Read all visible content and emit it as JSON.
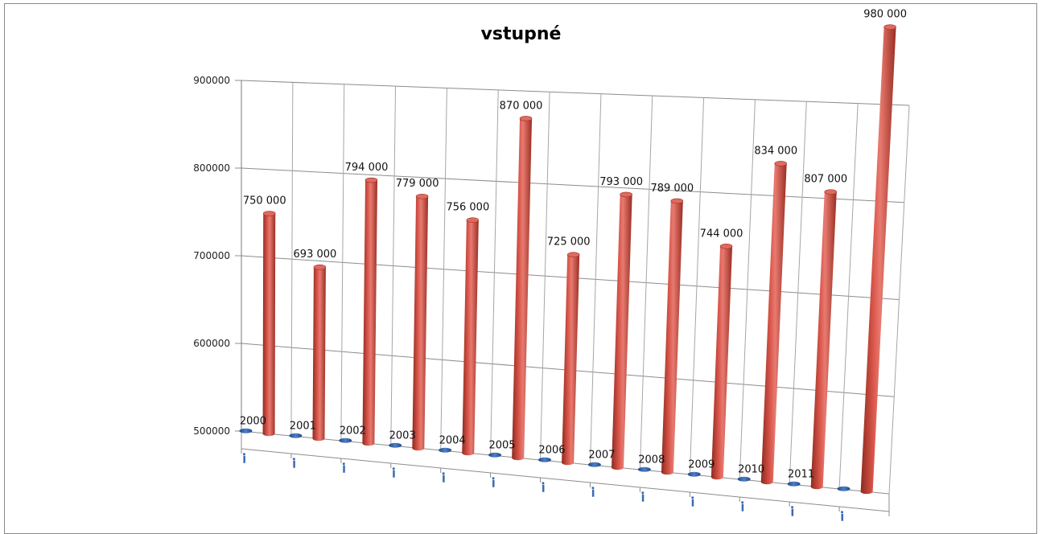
{
  "chart_data": {
    "type": "bar",
    "style": "3d-cylinder",
    "title": "vstupné",
    "categories": [
      "2000",
      "2001",
      "2002",
      "2003",
      "2004",
      "2005",
      "2006",
      "2007",
      "2008",
      "2009",
      "2010",
      "2011",
      ""
    ],
    "series": [
      {
        "values": [
          750000,
          693000,
          794000,
          779000,
          756000,
          870000,
          725000,
          793000,
          789000,
          744000,
          834000,
          807000,
          980000
        ],
        "data_labels": [
          "750 000",
          "693 000",
          "794 000",
          "779 000",
          "756 000",
          "870 000",
          "725 000",
          "793 000",
          "789 000",
          "744 000",
          "834 000",
          "807 000",
          "980 000"
        ],
        "color": "#c0392b"
      },
      {
        "values": [
          0,
          0,
          0,
          0,
          0,
          0,
          0,
          0,
          0,
          0,
          0,
          0,
          0
        ],
        "color": "#2e5a9c"
      }
    ],
    "ylim": [
      500000,
      900000
    ],
    "yticks": [
      "500000",
      "600000",
      "700000",
      "800000",
      "900000"
    ],
    "grid": true,
    "legend": "none"
  }
}
